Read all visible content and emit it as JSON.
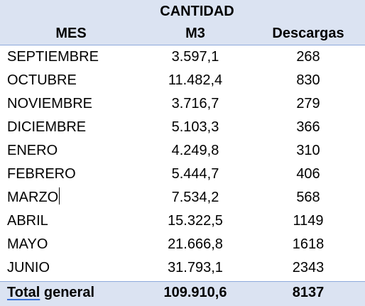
{
  "headers": {
    "group_label": "CANTIDAD",
    "mes": "MES",
    "m3": "M3",
    "descargas": "Descargas"
  },
  "rows": [
    {
      "mes": "SEPTIEMBRE",
      "m3": "3.597,1",
      "descargas": "268"
    },
    {
      "mes": "OCTUBRE",
      "m3": "11.482,4",
      "descargas": "830"
    },
    {
      "mes": "NOVIEMBRE",
      "m3": "3.716,7",
      "descargas": "279"
    },
    {
      "mes": "DICIEMBRE",
      "m3": "5.103,3",
      "descargas": "366"
    },
    {
      "mes": "ENERO",
      "m3": "4.249,8",
      "descargas": "310"
    },
    {
      "mes": "FEBRERO",
      "m3": "5.444,7",
      "descargas": "406"
    },
    {
      "mes": "MARZO",
      "m3": "7.534,2",
      "descargas": "568"
    },
    {
      "mes": "ABRIL",
      "m3": "15.322,5",
      "descargas": "1149"
    },
    {
      "mes": "MAYO",
      "m3": "21.666,8",
      "descargas": "1618"
    },
    {
      "mes": "JUNIO",
      "m3": "31.793,1",
      "descargas": "2343"
    }
  ],
  "total": {
    "label_first": "Total",
    "label_rest": " general",
    "m3": "109.910,6",
    "descargas": "8137"
  },
  "colors": {
    "header_background": "#dbe3f2",
    "border": "#8ea9db",
    "spellcheck_underline": "#3b6fd6"
  }
}
